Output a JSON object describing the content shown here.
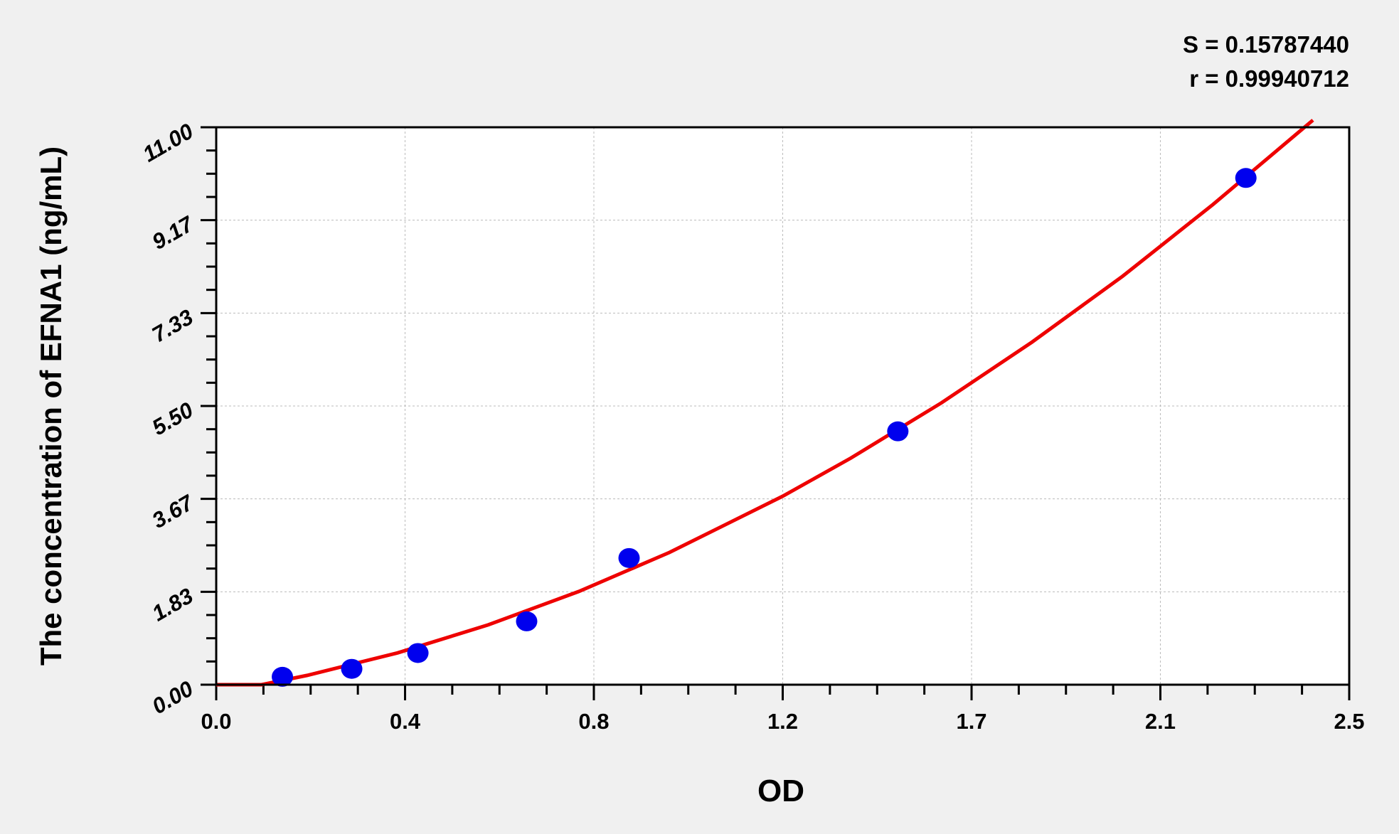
{
  "chart_data": {
    "type": "scatter",
    "title": "",
    "xlabel": "OD",
    "ylabel": "The concentration of EFNA1 (ng/mL)",
    "xlim": [
      0,
      2.5
    ],
    "ylim": [
      0,
      11
    ],
    "x_ticks": [
      0,
      0.4167,
      0.8333,
      1.25,
      1.6667,
      2.0833,
      2.5
    ],
    "x_tick_labels": [
      "0.0",
      "0.4",
      "0.8",
      "1.2",
      "1.7",
      "2.1",
      "2.5"
    ],
    "y_ticks": [
      0,
      1.8333,
      3.6667,
      5.5,
      7.3333,
      9.1667,
      11
    ],
    "y_tick_labels": [
      "0.00",
      "1.83",
      "3.67",
      "5.50",
      "7.33",
      "9.17",
      "11.00"
    ],
    "grid": true,
    "annotations": [
      "S = 0.15787440",
      "r = 0.99940712"
    ],
    "points": {
      "x": [
        0.146,
        0.299,
        0.445,
        0.685,
        0.911,
        1.504,
        2.272
      ],
      "y": [
        0.156,
        0.313,
        0.625,
        1.25,
        2.5,
        5.0,
        10.0
      ]
    },
    "fit_curve": {
      "x": [
        0,
        0.1,
        0.2,
        0.4,
        0.6,
        0.8,
        1.0,
        1.25,
        1.4,
        1.6,
        1.8,
        2.0,
        2.2,
        2.4,
        2.42
      ],
      "y": [
        0,
        0,
        0.182,
        0.627,
        1.18,
        1.84,
        2.61,
        3.72,
        4.47,
        5.56,
        6.76,
        8.06,
        9.48,
        10.99,
        11.14
      ]
    },
    "colors": {
      "points": "#0000ee",
      "curve": "#ee0000",
      "background": "#f0f0f0",
      "plot_area": "#ffffff"
    }
  }
}
